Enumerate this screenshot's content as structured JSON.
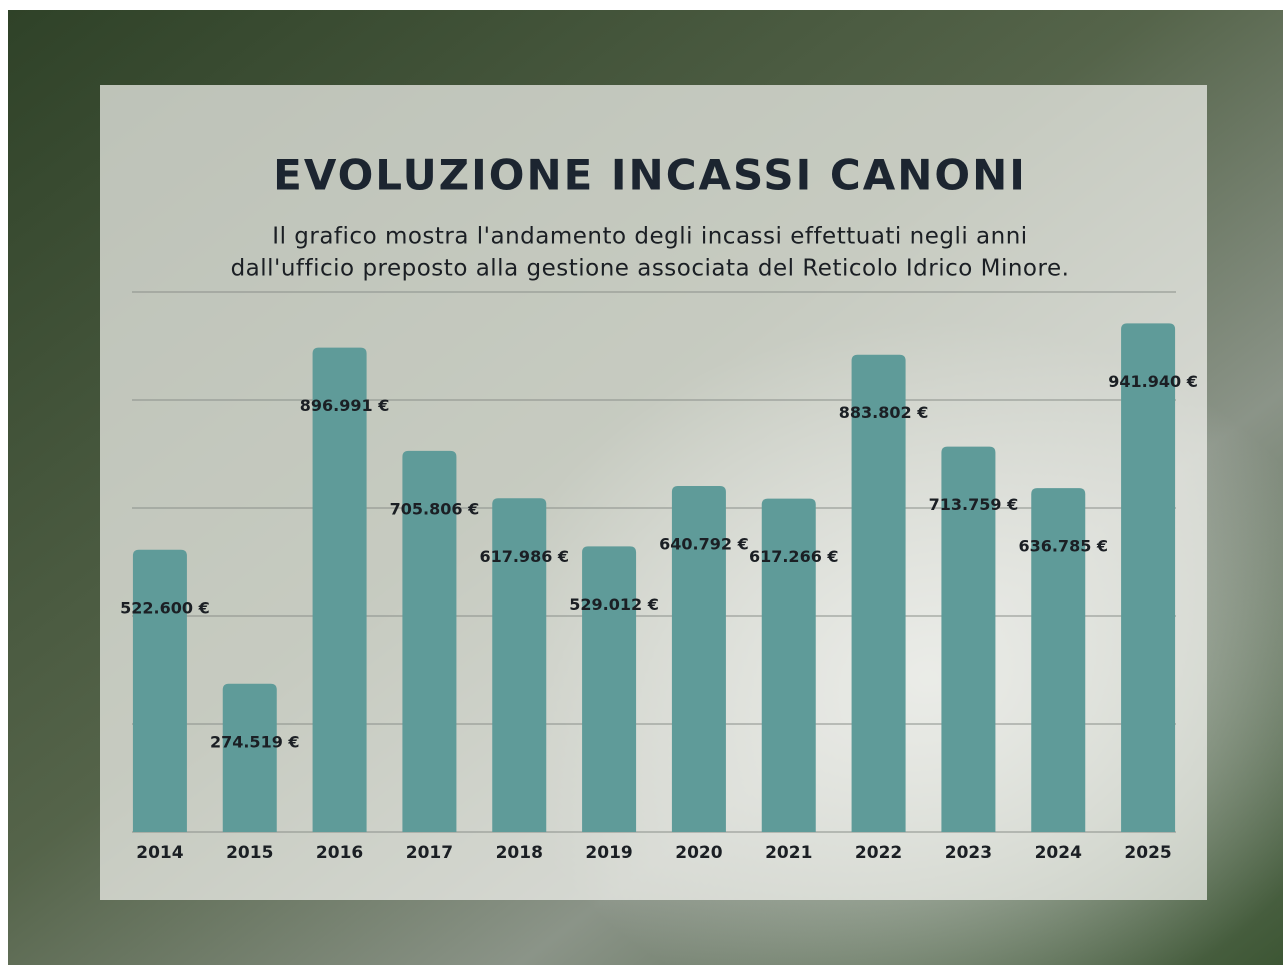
{
  "chart_data": {
    "type": "bar",
    "title": "EVOLUZIONE INCASSI CANONI",
    "subtitle": [
      "Il grafico mostra l'andamento degli incassi effettuati negli anni",
      "dall'ufficio preposto alla gestione associata del Reticolo Idrico Minore."
    ],
    "categories": [
      "2014",
      "2015",
      "2016",
      "2017",
      "2018",
      "2019",
      "2020",
      "2021",
      "2022",
      "2023",
      "2024",
      "2025"
    ],
    "values": [
      522600,
      274519,
      896991,
      705806,
      617986,
      529012,
      640792,
      617266,
      883802,
      713759,
      636785,
      941940
    ],
    "value_labels": [
      "522.600 €",
      "274.519 €",
      "896.991 €",
      "705.806 €",
      "617.986 €",
      "529.012 €",
      "640.792 €",
      "617.266 €",
      "883.802 €",
      "713.759 €",
      "636.785 €",
      "941.940 €"
    ],
    "color": "#5f9b99",
    "ylim": [
      0,
      1000000
    ],
    "yticks": [
      0,
      200000,
      400000,
      600000,
      800000,
      1000000
    ],
    "grid": true
  }
}
